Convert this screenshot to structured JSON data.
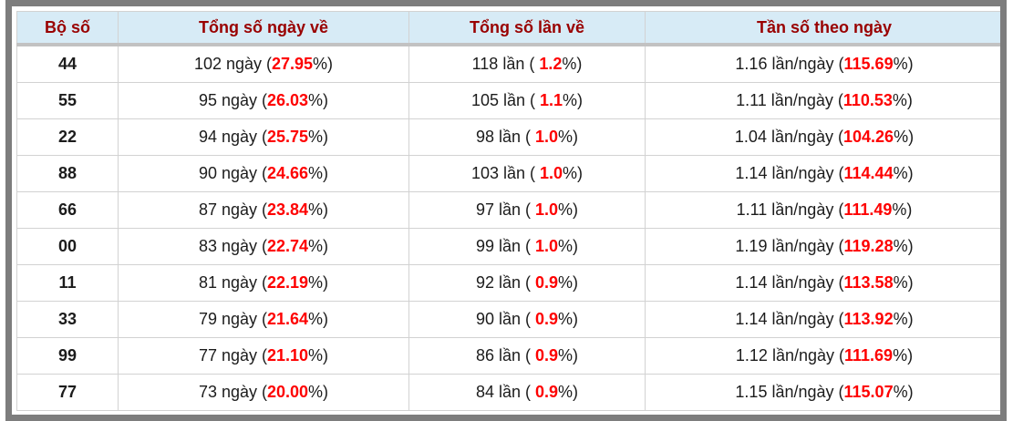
{
  "table": {
    "headers": [
      "Bộ số",
      "Tổng số ngày về",
      "Tổng số lần về",
      "Tần số theo ngày"
    ],
    "rows": [
      {
        "pair": "44",
        "days": "102 ngày",
        "days_pct": "27.95",
        "times": "118 lần",
        "times_pct": "1.2",
        "freq": "1.16 lần/ngày",
        "freq_pct": "115.69"
      },
      {
        "pair": "55",
        "days": "95 ngày",
        "days_pct": "26.03",
        "times": "105 lần",
        "times_pct": "1.1",
        "freq": "1.11 lần/ngày",
        "freq_pct": "110.53"
      },
      {
        "pair": "22",
        "days": "94 ngày",
        "days_pct": "25.75",
        "times": "98 lần",
        "times_pct": "1.0",
        "freq": "1.04 lần/ngày",
        "freq_pct": "104.26"
      },
      {
        "pair": "88",
        "days": "90 ngày",
        "days_pct": "24.66",
        "times": "103 lần",
        "times_pct": "1.0",
        "freq": "1.14 lần/ngày",
        "freq_pct": "114.44"
      },
      {
        "pair": "66",
        "days": "87 ngày",
        "days_pct": "23.84",
        "times": "97 lần",
        "times_pct": "1.0",
        "freq": "1.11 lần/ngày",
        "freq_pct": "111.49"
      },
      {
        "pair": "00",
        "days": "83 ngày",
        "days_pct": "22.74",
        "times": "99 lần",
        "times_pct": "1.0",
        "freq": "1.19 lần/ngày",
        "freq_pct": "119.28"
      },
      {
        "pair": "11",
        "days": "81 ngày",
        "days_pct": "22.19",
        "times": "92 lần",
        "times_pct": "0.9",
        "freq": "1.14 lần/ngày",
        "freq_pct": "113.58"
      },
      {
        "pair": "33",
        "days": "79 ngày",
        "days_pct": "21.64",
        "times": "90 lần",
        "times_pct": "0.9",
        "freq": "1.14 lần/ngày",
        "freq_pct": "113.92"
      },
      {
        "pair": "99",
        "days": "77 ngày",
        "days_pct": "21.10",
        "times": "86 lần",
        "times_pct": "0.9",
        "freq": "1.12 lần/ngày",
        "freq_pct": "111.69"
      },
      {
        "pair": "77",
        "days": "73 ngày",
        "days_pct": "20.00",
        "times": "84 lần",
        "times_pct": "0.9",
        "freq": "1.15 lần/ngày",
        "freq_pct": "115.07"
      }
    ]
  },
  "colors": {
    "frame_gray": "#7d7d7d",
    "header_bg": "#d7ebf6",
    "header_text": "#990000",
    "highlight_red": "#fe0000",
    "cell_border": "#d2d2d2"
  }
}
